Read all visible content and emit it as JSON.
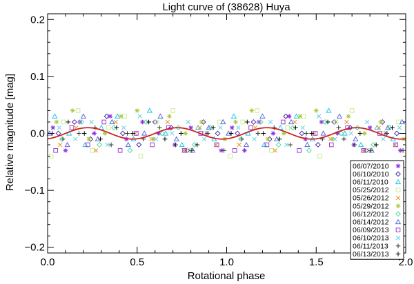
{
  "chart_data": {
    "type": "scatter",
    "title": "Light curve of (38628) Huya",
    "xlabel": "Rotational phase",
    "ylabel": "Relative magnitude [mag]",
    "xlim": [
      0.0,
      2.0
    ],
    "ylim": [
      -0.21,
      0.21
    ],
    "x_ticks": [
      {
        "value": 0.0,
        "label": "0.0"
      },
      {
        "value": 0.5,
        "label": "0.5"
      },
      {
        "value": 1.0,
        "label": "1.0"
      },
      {
        "value": 1.5,
        "label": "1.5"
      },
      {
        "value": 2.0,
        "label": "2.0"
      }
    ],
    "y_ticks": [
      {
        "value": 0.2,
        "label": "0.2"
      },
      {
        "value": 0.1,
        "label": "0.1"
      },
      {
        "value": 0.0,
        "label": "0.0"
      },
      {
        "value": -0.1,
        "label": "−0.1"
      },
      {
        "value": -0.2,
        "label": "−0.2"
      }
    ],
    "grid": false,
    "legend_position": "lower-right",
    "series": [
      {
        "name": "06/07/2010",
        "marker": "asterisk",
        "color": "#8a2be2",
        "x": [
          0.03,
          0.1,
          0.18,
          0.26,
          0.35,
          0.44,
          0.53,
          0.62,
          0.71,
          0.8,
          0.89,
          0.97,
          1.03,
          1.1,
          1.18,
          1.26,
          1.35,
          1.44,
          1.53,
          1.62,
          1.71,
          1.8,
          1.89,
          1.97
        ],
        "y": [
          0.01,
          -0.03,
          0.02,
          0.0,
          0.03,
          -0.01,
          0.02,
          0.0,
          -0.02,
          0.01,
          0.0,
          -0.03,
          0.01,
          -0.03,
          0.02,
          0.0,
          0.03,
          -0.01,
          0.02,
          0.0,
          -0.02,
          0.01,
          0.0,
          -0.03
        ]
      },
      {
        "name": "06/10/2010",
        "marker": "diamond",
        "color": "#4b2ca8",
        "x": [
          0.06,
          0.15,
          0.24,
          0.33,
          0.42,
          0.51,
          0.6,
          0.69,
          0.78,
          0.87,
          0.95,
          1.06,
          1.15,
          1.24,
          1.33,
          1.42,
          1.51,
          1.6,
          1.69,
          1.78,
          1.87,
          1.95
        ],
        "y": [
          0.0,
          0.02,
          -0.01,
          0.03,
          0.0,
          -0.02,
          0.02,
          0.01,
          -0.03,
          0.02,
          0.0,
          0.0,
          0.02,
          -0.01,
          0.03,
          0.0,
          -0.02,
          0.02,
          0.01,
          -0.03,
          0.02,
          0.0
        ]
      },
      {
        "name": "06/11/2010",
        "marker": "triangle",
        "color": "#1ec8f0",
        "x": [
          0.04,
          0.12,
          0.21,
          0.3,
          0.39,
          0.48,
          0.57,
          0.66,
          0.75,
          0.84,
          0.93,
          1.04,
          1.12,
          1.21,
          1.3,
          1.39,
          1.48,
          1.57,
          1.66,
          1.75,
          1.84,
          1.93
        ],
        "y": [
          0.03,
          0.0,
          -0.02,
          0.01,
          0.03,
          -0.01,
          0.04,
          0.0,
          -0.02,
          0.01,
          -0.01,
          0.03,
          0.0,
          -0.02,
          0.01,
          0.03,
          -0.01,
          0.04,
          0.0,
          -0.02,
          0.01,
          -0.01
        ]
      },
      {
        "name": "05/25/2012",
        "marker": "square",
        "color": "#c8ee96",
        "x": [
          0.02,
          0.09,
          0.17,
          0.25,
          0.34,
          0.43,
          0.52,
          0.61,
          0.7,
          0.79,
          0.88,
          0.96,
          1.02,
          1.09,
          1.17,
          1.25,
          1.34,
          1.43,
          1.52,
          1.61,
          1.7,
          1.79,
          1.88,
          1.96
        ],
        "y": [
          -0.04,
          0.02,
          0.04,
          -0.03,
          0.01,
          0.03,
          -0.04,
          0.02,
          0.04,
          -0.03,
          0.0,
          0.02,
          -0.04,
          0.02,
          0.04,
          -0.03,
          0.01,
          0.03,
          -0.04,
          0.02,
          0.04,
          -0.03,
          0.0,
          0.02
        ]
      },
      {
        "name": "05/26/2012",
        "marker": "x",
        "color": "#f08c1e",
        "x": [
          0.07,
          0.16,
          0.27,
          0.38,
          0.49,
          0.58,
          0.67,
          0.76,
          0.85,
          0.94,
          1.07,
          1.16,
          1.27,
          1.38,
          1.49,
          1.58,
          1.67,
          1.76,
          1.85,
          1.94
        ],
        "y": [
          -0.02,
          0.01,
          -0.03,
          0.02,
          0.0,
          -0.01,
          0.02,
          -0.03,
          0.01,
          -0.02,
          -0.02,
          0.01,
          -0.03,
          0.02,
          0.0,
          -0.01,
          0.02,
          -0.03,
          0.01,
          -0.02
        ]
      },
      {
        "name": "05/29/2012",
        "marker": "asterisk",
        "color": "#aac83c",
        "x": [
          0.05,
          0.14,
          0.23,
          0.32,
          0.41,
          0.5,
          0.59,
          0.68,
          0.77,
          0.86,
          0.99,
          1.05,
          1.14,
          1.23,
          1.32,
          1.41,
          1.5,
          1.59,
          1.68,
          1.77,
          1.86,
          1.99
        ],
        "y": [
          0.02,
          0.04,
          -0.01,
          0.0,
          0.03,
          0.04,
          -0.01,
          0.03,
          0.0,
          0.02,
          -0.01,
          0.02,
          0.04,
          -0.01,
          0.0,
          0.03,
          0.04,
          -0.01,
          0.03,
          0.0,
          0.02,
          -0.01
        ]
      },
      {
        "name": "06/12/2012",
        "marker": "diamond",
        "color": "#50dca0",
        "x": [
          0.08,
          0.19,
          0.29,
          0.37,
          0.46,
          0.55,
          0.64,
          0.73,
          0.82,
          0.91,
          1.08,
          1.19,
          1.29,
          1.37,
          1.46,
          1.55,
          1.64,
          1.73,
          1.82,
          1.91
        ],
        "y": [
          -0.01,
          0.02,
          -0.02,
          0.01,
          -0.03,
          0.02,
          0.0,
          0.01,
          -0.02,
          0.01,
          -0.01,
          0.02,
          -0.02,
          0.01,
          -0.03,
          0.02,
          0.0,
          0.01,
          -0.02,
          0.01
        ]
      },
      {
        "name": "06/14/2012",
        "marker": "triangle",
        "color": "#5a6adc",
        "x": [
          0.01,
          0.11,
          0.2,
          0.28,
          0.36,
          0.45,
          0.54,
          0.63,
          0.72,
          0.81,
          0.9,
          0.98,
          1.01,
          1.11,
          1.2,
          1.28,
          1.36,
          1.45,
          1.54,
          1.63,
          1.72,
          1.81,
          1.9,
          1.98
        ],
        "y": [
          0.0,
          -0.02,
          0.03,
          -0.01,
          0.02,
          -0.02,
          0.0,
          0.03,
          -0.01,
          -0.03,
          0.01,
          0.02,
          0.0,
          -0.02,
          0.03,
          -0.01,
          0.02,
          -0.02,
          0.0,
          0.03,
          -0.01,
          -0.03,
          0.01,
          0.02
        ]
      },
      {
        "name": "06/09/2013",
        "marker": "square",
        "color": "#9b3cd2",
        "x": [
          0.045,
          0.135,
          0.225,
          0.315,
          0.405,
          0.495,
          0.585,
          0.675,
          0.765,
          0.855,
          0.945,
          1.045,
          1.135,
          1.225,
          1.315,
          1.405,
          1.495,
          1.585,
          1.675,
          1.765,
          1.855,
          1.945
        ],
        "y": [
          -0.03,
          0.01,
          -0.02,
          0.02,
          -0.03,
          0.0,
          -0.02,
          0.01,
          -0.03,
          0.0,
          -0.02,
          -0.03,
          0.01,
          -0.02,
          0.02,
          -0.03,
          0.0,
          -0.02,
          0.01,
          -0.03,
          0.0,
          -0.02
        ]
      },
      {
        "name": "06/10/2013",
        "marker": "x",
        "color": "#5ad2e6",
        "x": [
          0.065,
          0.155,
          0.245,
          0.335,
          0.425,
          0.515,
          0.605,
          0.695,
          0.785,
          0.875,
          0.965,
          1.065,
          1.155,
          1.245,
          1.335,
          1.425,
          1.515,
          1.605,
          1.695,
          1.785,
          1.875,
          1.965
        ],
        "y": [
          0.01,
          -0.01,
          0.02,
          -0.02,
          0.01,
          0.03,
          -0.01,
          0.0,
          0.02,
          -0.01,
          0.01,
          0.01,
          -0.01,
          0.02,
          -0.02,
          0.01,
          0.03,
          -0.01,
          0.0,
          0.02,
          -0.01,
          0.01
        ]
      },
      {
        "name": "06/11/2013",
        "marker": "plus",
        "color": "#333333",
        "x": [
          0.085,
          0.175,
          0.265,
          0.355,
          0.445,
          0.535,
          0.625,
          0.715,
          0.805,
          0.895,
          0.985,
          1.085,
          1.175,
          1.265,
          1.355,
          1.445,
          1.535,
          1.625,
          1.715,
          1.805,
          1.895,
          1.985
        ],
        "y": [
          -0.01,
          0.0,
          0.01,
          -0.02,
          0.0,
          -0.01,
          0.01,
          -0.02,
          -0.03,
          0.0,
          -0.03,
          -0.01,
          0.0,
          0.01,
          -0.02,
          0.0,
          -0.01,
          0.01,
          -0.02,
          -0.03,
          0.0,
          -0.03
        ]
      },
      {
        "name": "06/13/2013",
        "marker": "plus",
        "color": "#000000",
        "x": [
          0.025,
          0.115,
          0.205,
          0.295,
          0.385,
          0.475,
          0.565,
          0.655,
          0.745,
          0.835,
          0.925,
          1.025,
          1.115,
          1.205,
          1.295,
          1.385,
          1.475,
          1.565,
          1.655,
          1.745,
          1.835,
          1.925
        ],
        "y": [
          0.0,
          0.02,
          0.0,
          -0.01,
          0.01,
          0.0,
          0.02,
          -0.01,
          0.0,
          -0.02,
          0.01,
          0.0,
          0.02,
          0.0,
          -0.01,
          0.01,
          0.0,
          0.02,
          -0.01,
          0.0,
          -0.02,
          0.01
        ]
      }
    ],
    "fit_curve": {
      "name": "fit",
      "color": "#cc2020",
      "offset": 0.0,
      "amplitude": 0.01,
      "periods_per_unit": 2,
      "phase_shift": 0.2,
      "samples": 200
    }
  }
}
